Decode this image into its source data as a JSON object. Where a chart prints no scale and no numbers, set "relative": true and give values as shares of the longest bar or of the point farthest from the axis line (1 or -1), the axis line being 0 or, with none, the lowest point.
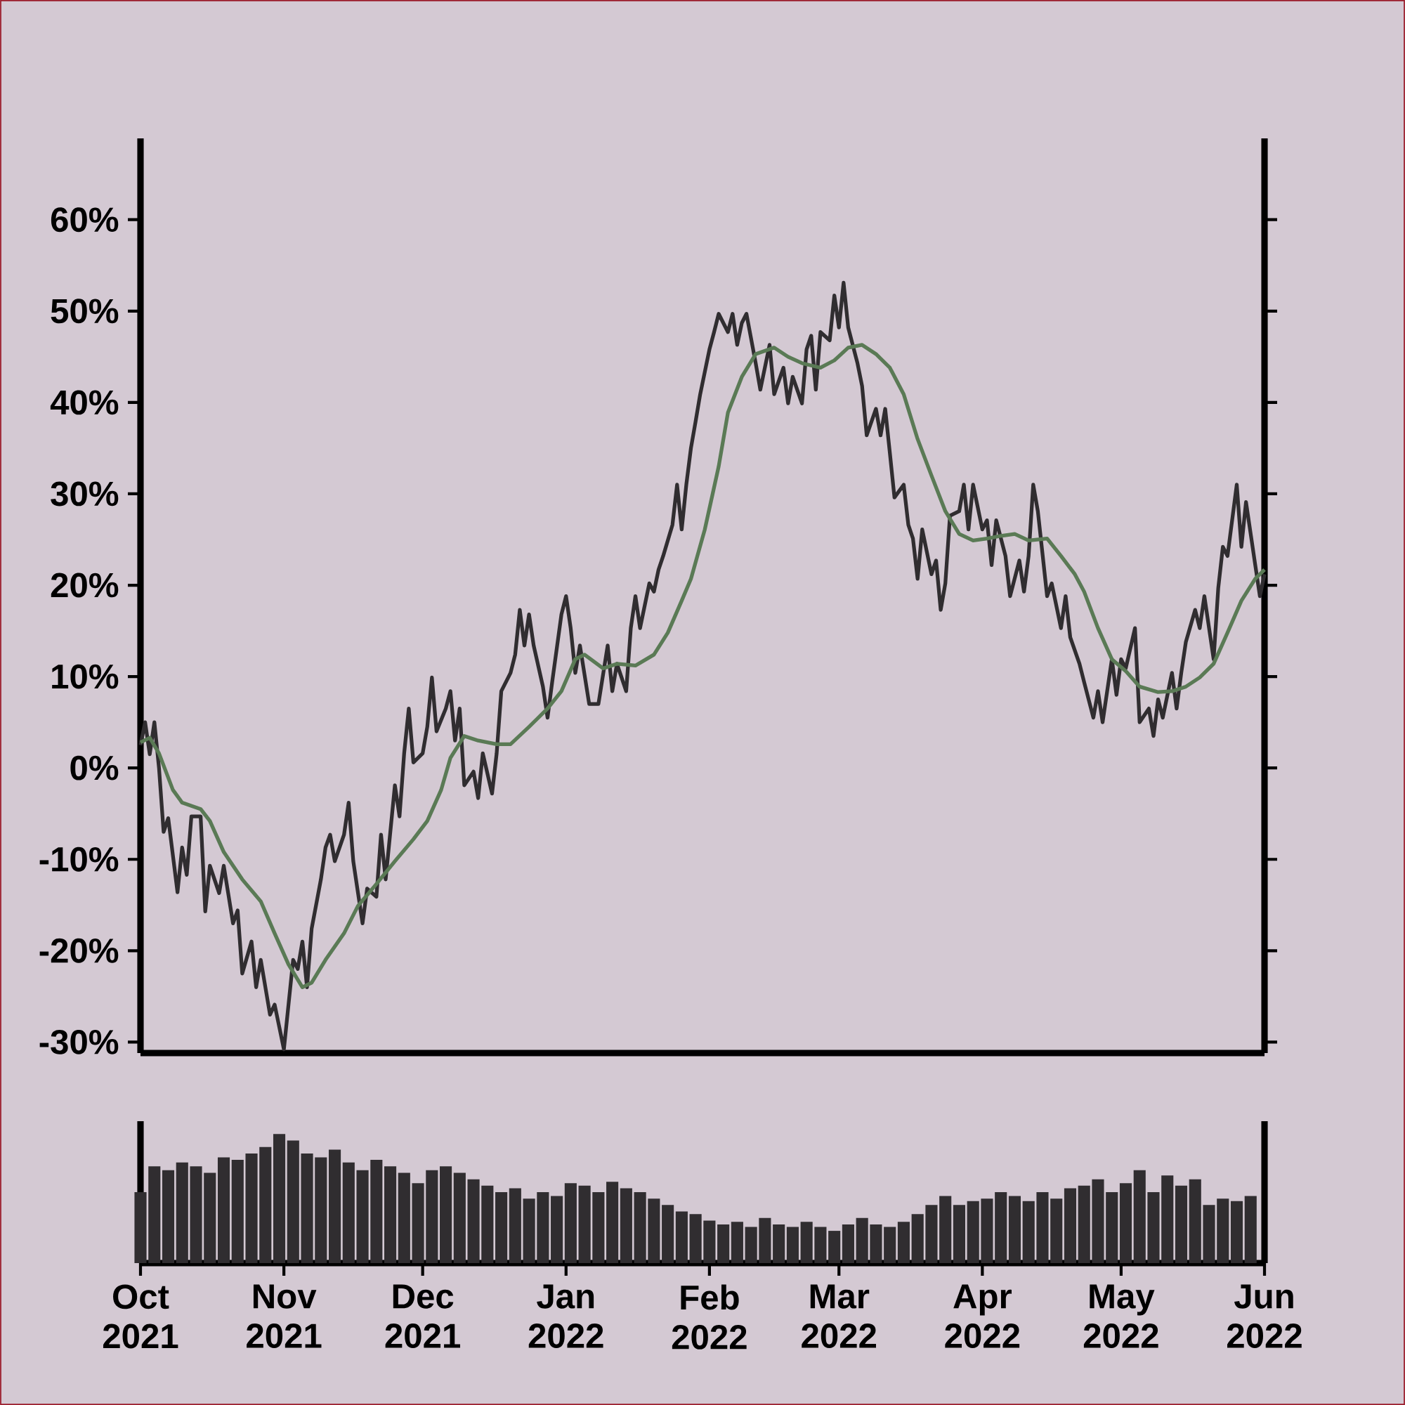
{
  "chart_data": [
    {
      "type": "line",
      "xlim": [
        "2021-10-01",
        "2022-06-01"
      ],
      "ylim": [
        -31.2,
        68.9
      ],
      "yticks": [
        {
          "value": -30,
          "label": "-30%"
        },
        {
          "value": -20,
          "label": "-20%"
        },
        {
          "value": -10,
          "label": "-10%"
        },
        {
          "value": 0,
          "label": "0%"
        },
        {
          "value": 10,
          "label": "10%"
        },
        {
          "value": 20,
          "label": "20%"
        },
        {
          "value": 30,
          "label": "30%"
        },
        {
          "value": 40,
          "label": "40%"
        },
        {
          "value": 50,
          "label": "50%"
        },
        {
          "value": 60,
          "label": "60%"
        }
      ],
      "tick_labels": "y",
      "series": [
        {
          "color": "#302d30",
          "x": [
            "2021-10-01",
            "2021-10-02",
            "2021-10-03",
            "2021-10-04",
            "2021-10-05",
            "2021-10-06",
            "2021-10-07",
            "2021-10-09",
            "2021-10-10",
            "2021-10-11",
            "2021-10-12",
            "2021-10-14",
            "2021-10-15",
            "2021-10-16",
            "2021-10-18",
            "2021-10-19",
            "2021-10-21",
            "2021-10-22",
            "2021-10-23",
            "2021-10-25",
            "2021-10-26",
            "2021-10-27",
            "2021-10-29",
            "2021-10-30",
            "2021-11-01",
            "2021-11-03",
            "2021-11-04",
            "2021-11-05",
            "2021-11-06",
            "2021-11-07",
            "2021-11-09",
            "2021-11-10",
            "2021-11-11",
            "2021-11-12",
            "2021-11-14",
            "2021-11-15",
            "2021-11-16",
            "2021-11-18",
            "2021-11-19",
            "2021-11-21",
            "2021-11-22",
            "2021-11-23",
            "2021-11-25",
            "2021-11-26",
            "2021-11-27",
            "2021-11-28",
            "2021-11-29",
            "2021-12-01",
            "2021-12-02",
            "2021-12-03",
            "2021-12-04",
            "2021-12-06",
            "2021-12-07",
            "2021-12-08",
            "2021-12-09",
            "2021-12-10",
            "2021-12-12",
            "2021-12-13",
            "2021-12-14",
            "2021-12-16",
            "2021-12-17",
            "2021-12-18",
            "2021-12-20",
            "2021-12-21",
            "2021-12-22",
            "2021-12-23",
            "2021-12-24",
            "2021-12-25",
            "2021-12-27",
            "2021-12-28",
            "2021-12-29",
            "2021-12-31",
            "2022-01-01",
            "2022-01-02",
            "2022-01-03",
            "2022-01-04",
            "2022-01-06",
            "2022-01-08",
            "2022-01-10",
            "2022-01-11",
            "2022-01-12",
            "2022-01-14",
            "2022-01-15",
            "2022-01-16",
            "2022-01-17",
            "2022-01-19",
            "2022-01-20",
            "2022-01-21",
            "2022-01-22",
            "2022-01-24",
            "2022-01-25",
            "2022-01-26",
            "2022-01-27",
            "2022-01-28",
            "2022-01-29",
            "2022-01-30",
            "2022-02-01",
            "2022-02-02",
            "2022-02-03",
            "2022-02-05",
            "2022-02-06",
            "2022-02-07",
            "2022-02-08",
            "2022-02-09",
            "2022-02-11",
            "2022-02-12",
            "2022-02-14",
            "2022-02-15",
            "2022-02-17",
            "2022-02-18",
            "2022-02-19",
            "2022-02-21",
            "2022-02-22",
            "2022-02-23",
            "2022-02-24",
            "2022-02-25",
            "2022-02-27",
            "2022-02-28",
            "2022-03-01",
            "2022-03-02",
            "2022-03-03",
            "2022-03-05",
            "2022-03-06",
            "2022-03-07",
            "2022-03-09",
            "2022-03-10",
            "2022-03-11",
            "2022-03-12",
            "2022-03-13",
            "2022-03-15",
            "2022-03-16",
            "2022-03-17",
            "2022-03-18",
            "2022-03-19",
            "2022-03-21",
            "2022-03-22",
            "2022-03-23",
            "2022-03-24",
            "2022-03-25",
            "2022-03-27",
            "2022-03-28",
            "2022-03-29",
            "2022-03-30",
            "2022-04-01",
            "2022-04-02",
            "2022-04-03",
            "2022-04-04",
            "2022-04-06",
            "2022-04-07",
            "2022-04-09",
            "2022-04-10",
            "2022-04-11",
            "2022-04-12",
            "2022-04-13",
            "2022-04-15",
            "2022-04-16",
            "2022-04-18",
            "2022-04-19",
            "2022-04-20",
            "2022-04-22",
            "2022-04-23",
            "2022-04-25",
            "2022-04-26",
            "2022-04-27",
            "2022-04-29",
            "2022-04-30",
            "2022-05-01",
            "2022-05-02",
            "2022-05-04",
            "2022-05-05",
            "2022-05-07",
            "2022-05-08",
            "2022-05-09",
            "2022-05-10",
            "2022-05-12",
            "2022-05-13",
            "2022-05-14",
            "2022-05-15",
            "2022-05-17",
            "2022-05-18",
            "2022-05-19",
            "2022-05-21",
            "2022-05-22",
            "2022-05-23",
            "2022-05-24",
            "2022-05-26",
            "2022-05-27",
            "2022-05-28",
            "2022-05-30",
            "2022-05-31",
            "2022-06-01"
          ],
          "values": [
            2.5,
            5,
            1.5,
            5,
            0,
            -7,
            -5.5,
            -13.6,
            -8.7,
            -11.7,
            -5.3,
            -5.3,
            -15.7,
            -10.7,
            -13.7,
            -10.7,
            -17,
            -15.6,
            -22.5,
            -19,
            -24,
            -21,
            -27,
            -25.9,
            -30.8,
            -21,
            -22,
            -19,
            -24,
            -17.6,
            -12.2,
            -8.7,
            -7.3,
            -10.2,
            -7.3,
            -3.8,
            -10.2,
            -17,
            -13.2,
            -14.1,
            -7.3,
            -12.2,
            -1.9,
            -5.3,
            1.6,
            6.5,
            0.6,
            1.6,
            4.5,
            9.9,
            4,
            6.5,
            8.4,
            3,
            6.5,
            -1.9,
            -0.4,
            -3.3,
            1.6,
            -2.8,
            1.6,
            8.4,
            10.4,
            12.4,
            17.3,
            13.4,
            16.8,
            13.4,
            8.9,
            5.5,
            9.4,
            16.8,
            18.8,
            15.3,
            10.4,
            13.4,
            7,
            7,
            13.4,
            8.4,
            11.4,
            8.4,
            15.3,
            18.8,
            15.3,
            20.2,
            19.3,
            21.7,
            23.2,
            26.6,
            31,
            26.1,
            31,
            35,
            37.9,
            40.9,
            45.8,
            47.7,
            49.7,
            47.7,
            49.7,
            46.3,
            48.7,
            49.7,
            44.3,
            41.4,
            46.3,
            40.9,
            43.8,
            39.9,
            42.8,
            39.9,
            45.8,
            47.3,
            41.4,
            47.7,
            46.8,
            51.7,
            48.2,
            53.1,
            48.2,
            44.3,
            41.8,
            36.4,
            39.3,
            36.4,
            39.3,
            34.5,
            29.6,
            31,
            26.6,
            25.1,
            20.7,
            26.1,
            21.2,
            22.7,
            17.3,
            20.2,
            27.6,
            28.1,
            31,
            26.1,
            31,
            26.1,
            27.1,
            22.2,
            27.1,
            23.2,
            18.8,
            22.7,
            19.3,
            23.2,
            31,
            28.1,
            18.8,
            20.2,
            15.3,
            18.8,
            14.3,
            11.4,
            9.4,
            5.5,
            8.4,
            5,
            11.9,
            8,
            11.9,
            10.9,
            15.3,
            5,
            6.5,
            3.5,
            7.5,
            5.5,
            10.4,
            6.5,
            10.4,
            13.8,
            17.3,
            15.3,
            18.8,
            11.9,
            19.7,
            24.2,
            23.2,
            31,
            24.2,
            29.1,
            22.2,
            18.8,
            21.2
          ]
        },
        {
          "color": "#5a7a55",
          "x": [
            "2021-10-01",
            "2021-10-03",
            "2021-10-05",
            "2021-10-08",
            "2021-10-10",
            "2021-10-14",
            "2021-10-16",
            "2021-10-19",
            "2021-10-23",
            "2021-10-27",
            "2021-10-30",
            "2021-11-02",
            "2021-11-05",
            "2021-11-07",
            "2021-11-10",
            "2021-11-14",
            "2021-11-17",
            "2021-11-21",
            "2021-11-25",
            "2021-11-29",
            "2021-12-02",
            "2021-12-05",
            "2021-12-07",
            "2021-12-10",
            "2021-12-13",
            "2021-12-17",
            "2021-12-20",
            "2021-12-24",
            "2021-12-28",
            "2021-12-31",
            "2022-01-03",
            "2022-01-05",
            "2022-01-09",
            "2022-01-12",
            "2022-01-16",
            "2022-01-20",
            "2022-01-23",
            "2022-01-26",
            "2022-01-28",
            "2022-01-31",
            "2022-02-03",
            "2022-02-05",
            "2022-02-08",
            "2022-02-11",
            "2022-02-15",
            "2022-02-18",
            "2022-02-21",
            "2022-02-25",
            "2022-02-28",
            "2022-03-03",
            "2022-03-06",
            "2022-03-09",
            "2022-03-12",
            "2022-03-15",
            "2022-03-18",
            "2022-03-21",
            "2022-03-24",
            "2022-03-27",
            "2022-03-30",
            "2022-04-02",
            "2022-04-05",
            "2022-04-08",
            "2022-04-11",
            "2022-04-15",
            "2022-04-18",
            "2022-04-21",
            "2022-04-23",
            "2022-04-26",
            "2022-04-29",
            "2022-05-02",
            "2022-05-05",
            "2022-05-09",
            "2022-05-12",
            "2022-05-15",
            "2022-05-18",
            "2022-05-21",
            "2022-05-24",
            "2022-05-27",
            "2022-05-30",
            "2022-06-01"
          ],
          "values": [
            2.8,
            3.3,
            1.6,
            -2.4,
            -3.8,
            -4.5,
            -5.8,
            -9.2,
            -12.2,
            -14.6,
            -18.1,
            -21.5,
            -24,
            -23.5,
            -21,
            -18.1,
            -15.1,
            -12.7,
            -10.2,
            -7.8,
            -5.8,
            -2.4,
            1.1,
            3.5,
            3,
            2.6,
            2.6,
            4.5,
            6.5,
            8.4,
            11.9,
            12.4,
            10.9,
            11.4,
            11.2,
            12.4,
            14.8,
            18.3,
            20.7,
            26.1,
            33,
            38.9,
            42.8,
            45.3,
            46,
            45,
            44.3,
            43.8,
            44.6,
            46,
            46.3,
            45.3,
            43.8,
            40.9,
            36,
            32,
            28.1,
            25.6,
            24.9,
            25.1,
            25.4,
            25.6,
            24.9,
            25.1,
            23.2,
            21.2,
            19.3,
            15.3,
            11.9,
            10.6,
            8.9,
            8.3,
            8.4,
            8.9,
            9.9,
            11.4,
            14.8,
            18.3,
            20.7,
            21.7
          ]
        }
      ]
    },
    {
      "type": "bar",
      "relative": true,
      "xlim": [
        "2021-10-01",
        "2022-06-01"
      ],
      "xticks": [
        {
          "value": "2021-10-01",
          "label": "Oct 2021"
        },
        {
          "value": "2021-11-01",
          "label": "Nov 2021"
        },
        {
          "value": "2021-12-01",
          "label": "Dec 2021"
        },
        {
          "value": "2022-01-01",
          "label": "Jan 2022"
        },
        {
          "value": "2022-02-01",
          "label": "Feb 2022"
        },
        {
          "value": "2022-03-01",
          "label": "Mar 2022"
        },
        {
          "value": "2022-04-01",
          "label": "Apr 2022"
        },
        {
          "value": "2022-05-01",
          "label": "May 2022"
        },
        {
          "value": "2022-06-01",
          "label": "Jun 2022"
        }
      ],
      "tick_labels": "x",
      "x": [
        "2021-10-01",
        "2021-10-04",
        "2021-10-07",
        "2021-10-10",
        "2021-10-13",
        "2021-10-16",
        "2021-10-19",
        "2021-10-22",
        "2021-10-25",
        "2021-10-28",
        "2021-10-31",
        "2021-11-03",
        "2021-11-06",
        "2021-11-09",
        "2021-11-12",
        "2021-11-15",
        "2021-11-18",
        "2021-11-21",
        "2021-11-24",
        "2021-11-27",
        "2021-11-30",
        "2021-12-03",
        "2021-12-06",
        "2021-12-09",
        "2021-12-12",
        "2021-12-15",
        "2021-12-18",
        "2021-12-21",
        "2021-12-24",
        "2021-12-27",
        "2021-12-30",
        "2022-01-02",
        "2022-01-05",
        "2022-01-08",
        "2022-01-11",
        "2022-01-14",
        "2022-01-17",
        "2022-01-20",
        "2022-01-23",
        "2022-01-26",
        "2022-01-29",
        "2022-02-01",
        "2022-02-04",
        "2022-02-07",
        "2022-02-10",
        "2022-02-13",
        "2022-02-16",
        "2022-02-19",
        "2022-02-22",
        "2022-02-25",
        "2022-02-28",
        "2022-03-03",
        "2022-03-06",
        "2022-03-09",
        "2022-03-12",
        "2022-03-15",
        "2022-03-18",
        "2022-03-21",
        "2022-03-24",
        "2022-03-27",
        "2022-03-30",
        "2022-04-02",
        "2022-04-05",
        "2022-04-08",
        "2022-04-11",
        "2022-04-14",
        "2022-04-17",
        "2022-04-20",
        "2022-04-23",
        "2022-04-26",
        "2022-04-29",
        "2022-05-02",
        "2022-05-05",
        "2022-05-08",
        "2022-05-11",
        "2022-05-14",
        "2022-05-17",
        "2022-05-20",
        "2022-05-23",
        "2022-05-26",
        "2022-05-29"
      ],
      "series": [
        {
          "color": "#302d30",
          "values": [
            0.55,
            0.75,
            0.72,
            0.78,
            0.75,
            0.7,
            0.82,
            0.8,
            0.85,
            0.9,
            1.0,
            0.95,
            0.85,
            0.82,
            0.88,
            0.78,
            0.72,
            0.8,
            0.75,
            0.7,
            0.62,
            0.72,
            0.75,
            0.7,
            0.65,
            0.6,
            0.55,
            0.58,
            0.5,
            0.55,
            0.52,
            0.62,
            0.6,
            0.55,
            0.63,
            0.58,
            0.55,
            0.5,
            0.45,
            0.4,
            0.38,
            0.33,
            0.3,
            0.32,
            0.28,
            0.35,
            0.3,
            0.28,
            0.32,
            0.28,
            0.25,
            0.3,
            0.35,
            0.3,
            0.28,
            0.32,
            0.38,
            0.45,
            0.52,
            0.45,
            0.48,
            0.5,
            0.55,
            0.52,
            0.48,
            0.55,
            0.5,
            0.58,
            0.6,
            0.65,
            0.55,
            0.62,
            0.72,
            0.55,
            0.68,
            0.6,
            0.65,
            0.45,
            0.5,
            0.48,
            0.52
          ]
        }
      ]
    }
  ]
}
